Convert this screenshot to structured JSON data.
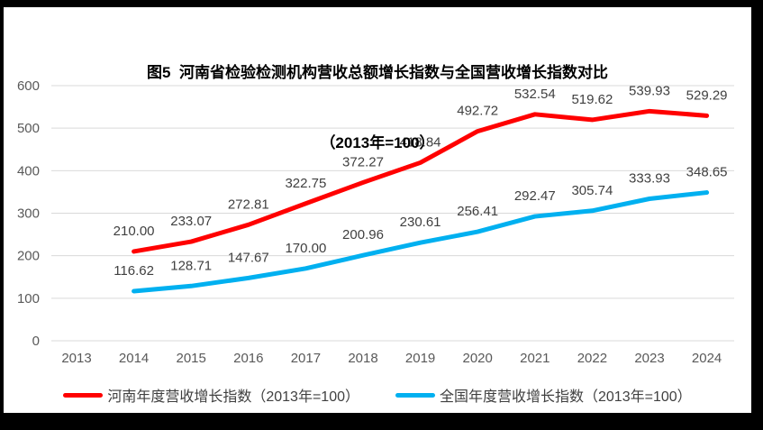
{
  "title": {
    "line1": "图5  河南省检验检测机构营收总额增长指数与全国营收增长指数对比",
    "line2": "（2013年=100）"
  },
  "chart_data": {
    "type": "line",
    "categories": [
      "2013",
      "2014",
      "2015",
      "2016",
      "2017",
      "2018",
      "2019",
      "2020",
      "2021",
      "2022",
      "2023",
      "2024"
    ],
    "series": [
      {
        "name": "河南年度营收增长指数（2013年=100）",
        "color": "#FF0000",
        "values": [
          null,
          210.0,
          233.07,
          272.81,
          322.75,
          372.27,
          418.84,
          492.72,
          532.54,
          519.62,
          539.93,
          529.29
        ]
      },
      {
        "name": "全国年度营收增长指数（2013年=100）",
        "color": "#00B0F0",
        "values": [
          null,
          116.62,
          128.71,
          147.67,
          170.0,
          200.96,
          230.61,
          256.41,
          292.47,
          305.74,
          333.93,
          348.65
        ]
      }
    ],
    "xlabel": "",
    "ylabel": "",
    "ylim": [
      0,
      600
    ],
    "y_ticks": [
      0,
      100,
      200,
      300,
      400,
      500,
      600
    ],
    "grid": true,
    "legend_position": "bottom",
    "data_labels": true,
    "label_decimals": 2
  },
  "colors": {
    "grid_line": "#D9D9D9",
    "axis_text": "#595959",
    "data_label_text": "#404040",
    "title_text": "#000000",
    "frame_border": "#000000",
    "background": "#FFFFFF"
  }
}
